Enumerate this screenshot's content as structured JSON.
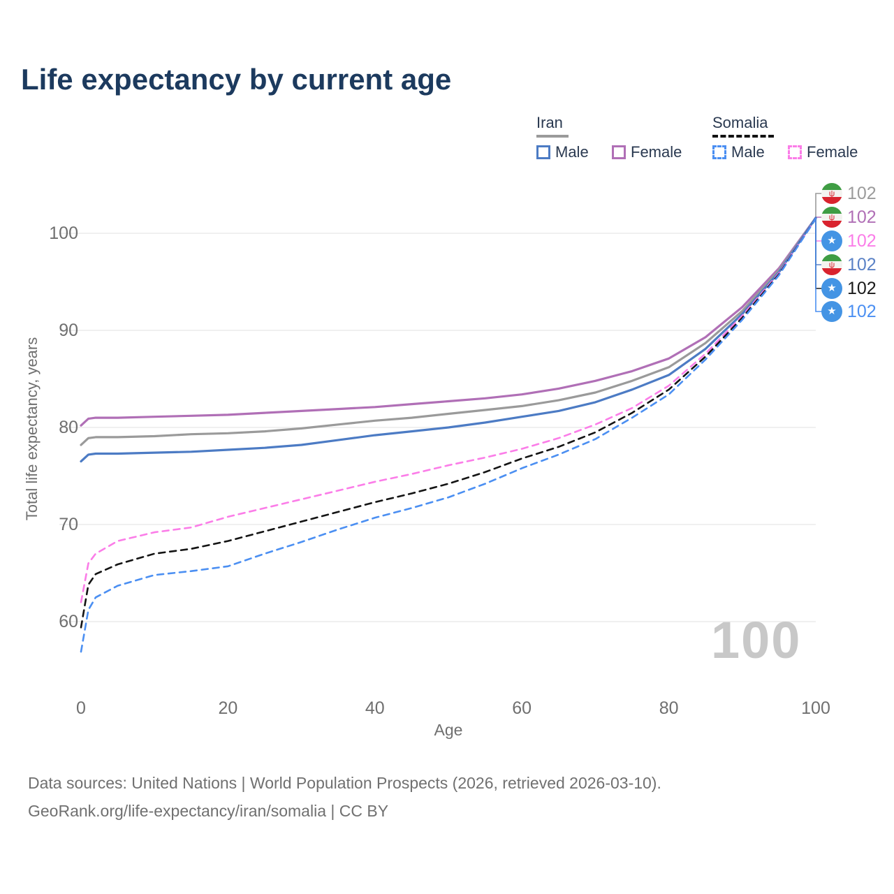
{
  "title": "Life expectancy by current age",
  "legend": {
    "iran": {
      "title": "Iran",
      "male": "Male",
      "female": "Female"
    },
    "somalia": {
      "title": "Somalia",
      "male": "Male",
      "female": "Female"
    }
  },
  "y_axis": {
    "label": "Total life expectancy, years",
    "ticks": [
      100,
      90,
      80,
      70,
      60
    ]
  },
  "x_axis": {
    "label": "Age",
    "ticks": [
      0,
      20,
      40,
      60,
      80,
      100
    ]
  },
  "watermark_current_age": "100",
  "icons": {
    "iran_flag_emblem": "ψ",
    "somalia_star": "★"
  },
  "right_labels": [
    {
      "series": "iran-average",
      "flag": "iran",
      "value": "102",
      "color": "#9b9b9b"
    },
    {
      "series": "iran-female",
      "flag": "iran",
      "value": "102",
      "color": "#b06fb6"
    },
    {
      "series": "somalia-female",
      "flag": "somalia",
      "value": "102",
      "color": "#fb7de8"
    },
    {
      "series": "iran-male",
      "flag": "iran",
      "value": "102",
      "color": "#5b82c6"
    },
    {
      "series": "somalia-average",
      "flag": "somalia",
      "value": "102",
      "color": "#1a1a1a"
    },
    {
      "series": "somalia-male",
      "flag": "somalia",
      "value": "102",
      "color": "#4b8ff2"
    }
  ],
  "footer": {
    "line1": "Data sources: United Nations | World Population Prospects (2026, retrieved 2026-03-10).",
    "line2": "GeoRank.org/life-expectancy/iran/somalia | CC BY"
  },
  "colors": {
    "title_text": "#1c3a5e",
    "legend_text": "#2a3950",
    "axis_text": "#6f6f6f",
    "gridline": "#e7e7e7",
    "watermark": "#c8c8c8",
    "iran_male": "#4c7bc4",
    "iran_female": "#b06fb6",
    "iran_average": "#9a9a9a",
    "somalia_male": "#4b8ff2",
    "somalia_female": "#fb7de8",
    "somalia_average": "#141414"
  },
  "chart_data": {
    "type": "line",
    "title": "Life expectancy by current age",
    "xlabel": "Age",
    "ylabel": "Total life expectancy, years",
    "xlim": [
      0,
      100
    ],
    "ylim": [
      56,
      103
    ],
    "grid": "horizontal",
    "legend_position": "top-right",
    "end_value_label": "102",
    "x": [
      0,
      1,
      2,
      5,
      10,
      15,
      20,
      25,
      30,
      35,
      40,
      45,
      50,
      55,
      60,
      65,
      70,
      75,
      80,
      85,
      90,
      95,
      100
    ],
    "series": [
      {
        "key": "iran-female",
        "name": "Iran Female",
        "style": "solid",
        "color": "#b06fb6",
        "values": [
          80.2,
          80.9,
          81.0,
          81.0,
          81.1,
          81.2,
          81.3,
          81.5,
          81.7,
          81.9,
          82.1,
          82.4,
          82.7,
          83.0,
          83.4,
          84.0,
          84.8,
          85.8,
          87.1,
          89.3,
          92.4,
          96.4,
          101.6
        ]
      },
      {
        "key": "iran-average",
        "name": "Iran Average",
        "style": "solid",
        "color": "#9a9a9a",
        "values": [
          78.2,
          78.9,
          79.0,
          79.0,
          79.1,
          79.3,
          79.4,
          79.6,
          79.9,
          80.3,
          80.7,
          81.0,
          81.4,
          81.8,
          82.2,
          82.8,
          83.6,
          84.8,
          86.2,
          88.7,
          92.0,
          96.2,
          101.6
        ]
      },
      {
        "key": "iran-male",
        "name": "Iran Male",
        "style": "solid",
        "color": "#4c7bc4",
        "values": [
          76.5,
          77.2,
          77.3,
          77.3,
          77.4,
          77.5,
          77.7,
          77.9,
          78.2,
          78.7,
          79.2,
          79.6,
          80.0,
          80.5,
          81.1,
          81.7,
          82.6,
          83.9,
          85.4,
          88.1,
          91.7,
          96.0,
          101.6
        ]
      },
      {
        "key": "somalia-female",
        "name": "Somalia Female",
        "style": "dashed",
        "color": "#fb7de8",
        "values": [
          62.0,
          66.0,
          67.0,
          68.3,
          69.2,
          69.7,
          70.8,
          71.7,
          72.6,
          73.5,
          74.4,
          75.2,
          76.1,
          76.9,
          77.8,
          78.9,
          80.3,
          82.0,
          84.3,
          87.6,
          91.5,
          95.9,
          101.5
        ]
      },
      {
        "key": "somalia-average",
        "name": "Somalia Average",
        "style": "dashed",
        "color": "#141414",
        "values": [
          59.4,
          63.8,
          64.9,
          65.9,
          67.0,
          67.5,
          68.3,
          69.3,
          70.3,
          71.3,
          72.3,
          73.2,
          74.2,
          75.4,
          76.8,
          78.0,
          79.5,
          81.5,
          83.9,
          87.3,
          91.3,
          95.8,
          101.5
        ]
      },
      {
        "key": "somalia-male",
        "name": "Somalia Male",
        "style": "dashed",
        "color": "#4b8ff2",
        "values": [
          56.9,
          61.2,
          62.5,
          63.7,
          64.8,
          65.2,
          65.7,
          67.0,
          68.2,
          69.5,
          70.7,
          71.7,
          72.8,
          74.2,
          75.8,
          77.2,
          78.8,
          81.0,
          83.4,
          87.0,
          91.1,
          95.7,
          101.5
        ]
      }
    ]
  }
}
